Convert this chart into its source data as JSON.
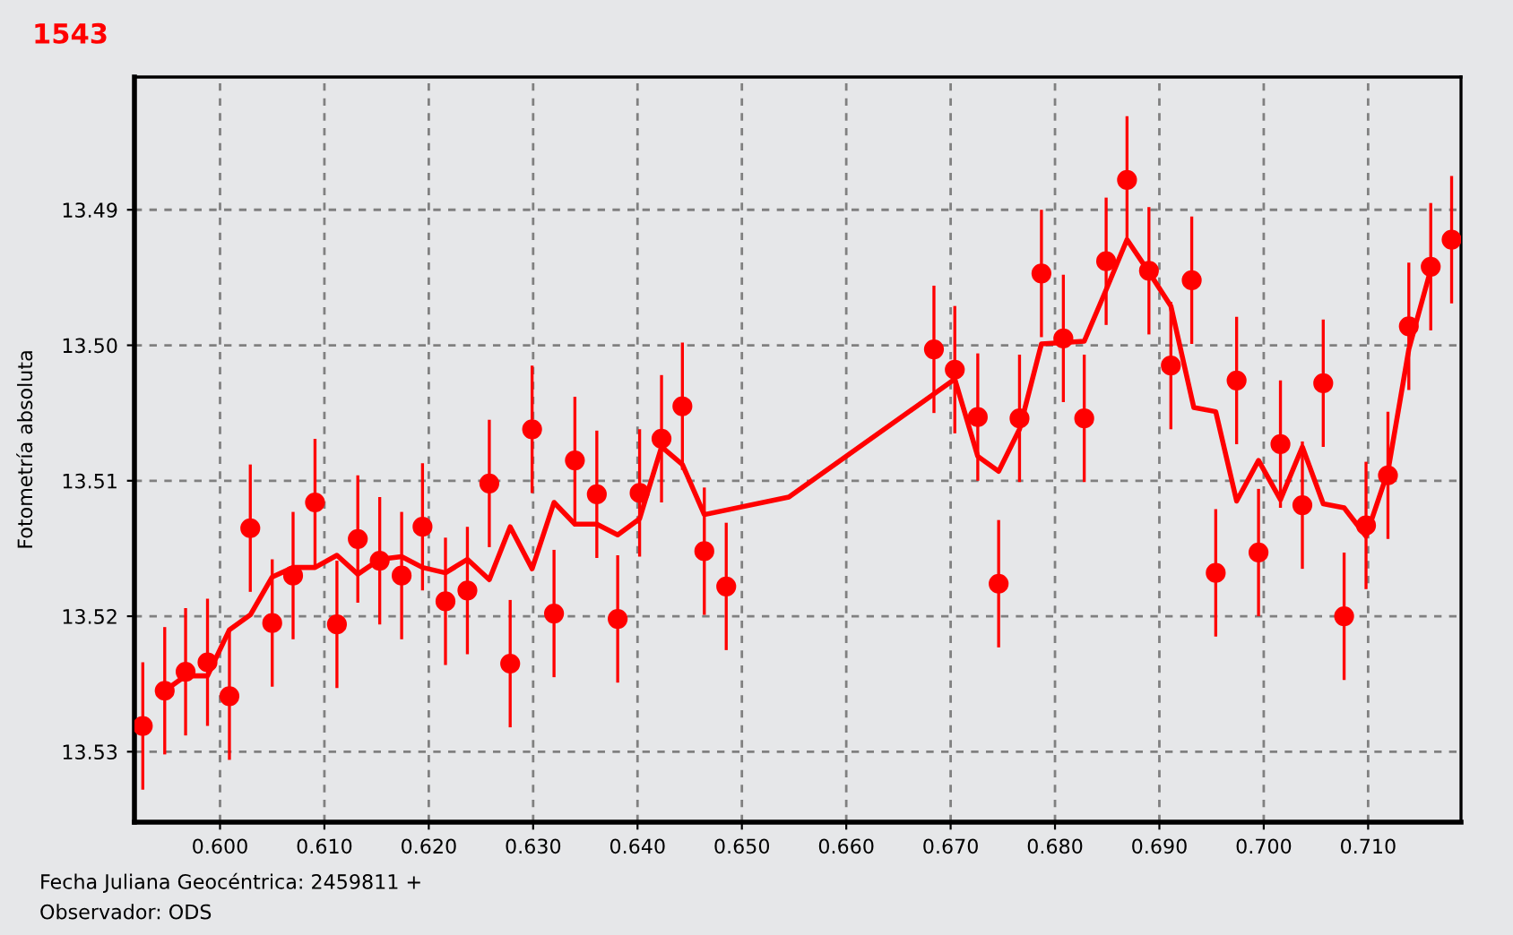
{
  "chart_data": {
    "type": "scatter",
    "title": "1543",
    "xlabel": "Fecha Juliana Geocéntrica: 2459811 +",
    "ylabel": "Fotometría absoluta",
    "annotations": [
      "Observador: ODS"
    ],
    "xlim": [
      0.5918,
      0.7189
    ],
    "ylim": [
      13.5352,
      13.4802
    ],
    "xticks": [
      {
        "value": 0.6,
        "label": "0.600"
      },
      {
        "value": 0.61,
        "label": "0.610"
      },
      {
        "value": 0.62,
        "label": "0.620"
      },
      {
        "value": 0.63,
        "label": "0.630"
      },
      {
        "value": 0.64,
        "label": "0.640"
      },
      {
        "value": 0.65,
        "label": "0.650"
      },
      {
        "value": 0.66,
        "label": "0.660"
      },
      {
        "value": 0.67,
        "label": "0.670"
      },
      {
        "value": 0.68,
        "label": "0.680"
      },
      {
        "value": 0.69,
        "label": "0.690"
      },
      {
        "value": 0.7,
        "label": "0.700"
      },
      {
        "value": 0.71,
        "label": "0.710"
      }
    ],
    "yticks": [
      13.49,
      {
        "value": 13.5,
        "label": "13.50"
      },
      13.51,
      13.52,
      13.53
    ],
    "grid": true,
    "legend": false,
    "series": [
      {
        "marker": "circle",
        "color": "#ff0000",
        "x": [
          0.5926,
          0.5947,
          0.5967,
          0.5988,
          0.6009,
          0.6029,
          0.605,
          0.607,
          0.6091,
          0.6112,
          0.6132,
          0.6153,
          0.6174,
          0.6194,
          0.6216,
          0.6237,
          0.6258,
          0.6278,
          0.6299,
          0.632,
          0.634,
          0.6361,
          0.6381,
          0.6402,
          0.6423,
          0.6443,
          0.6464,
          0.6485,
          0.6684,
          0.6704,
          0.6726,
          0.6746,
          0.6766,
          0.6787,
          0.6808,
          0.6828,
          0.6849,
          0.6869,
          0.689,
          0.6911,
          0.6931,
          0.6954,
          0.6974,
          0.6995,
          0.7016,
          0.7037,
          0.7057,
          0.7077,
          0.7098,
          0.7119,
          0.7139,
          0.716,
          0.718
        ],
        "values": [
          13.5281,
          13.5255,
          13.5241,
          13.5234,
          13.5259,
          13.5135,
          13.5205,
          13.517,
          13.5116,
          13.5206,
          13.5143,
          13.5159,
          13.517,
          13.5134,
          13.5189,
          13.5181,
          13.5102,
          13.5235,
          13.5062,
          13.5198,
          13.5085,
          13.511,
          13.5202,
          13.5109,
          13.5069,
          13.5045,
          13.5152,
          13.5178,
          13.5003,
          13.5018,
          13.5053,
          13.5176,
          13.5054,
          13.4947,
          13.4995,
          13.5054,
          13.4938,
          13.4878,
          13.4945,
          13.5015,
          13.4952,
          13.5168,
          13.5026,
          13.5153,
          13.5073,
          13.5118,
          13.5028,
          13.52,
          13.5133,
          13.5096,
          13.4986,
          13.4942,
          13.4922
        ],
        "errors": [
          0.0047,
          0.0047,
          0.0047,
          0.0047,
          0.0047,
          0.0047,
          0.0047,
          0.0047,
          0.0047,
          0.0047,
          0.0047,
          0.0047,
          0.0047,
          0.0047,
          0.0047,
          0.0047,
          0.0047,
          0.0047,
          0.0047,
          0.0047,
          0.0047,
          0.0047,
          0.0047,
          0.0047,
          0.0047,
          0.0047,
          0.0047,
          0.0047,
          0.0047,
          0.0047,
          0.0047,
          0.0047,
          0.0047,
          0.0047,
          0.0047,
          0.0047,
          0.0047,
          0.0047,
          0.0047,
          0.0047,
          0.0047,
          0.0047,
          0.0047,
          0.0047,
          0.0047,
          0.0047,
          0.0047,
          0.0047,
          0.0047,
          0.0047,
          0.0047,
          0.0047,
          0.0047
        ]
      },
      {
        "type": "line",
        "marker": "none",
        "line_style": "solid",
        "color": "#ff0000",
        "x": [
          0.5947,
          0.5967,
          0.5988,
          0.6009,
          0.6029,
          0.605,
          0.607,
          0.6091,
          0.6112,
          0.6132,
          0.6153,
          0.6174,
          0.6194,
          0.6216,
          0.6237,
          0.6258,
          0.6278,
          0.6299,
          0.632,
          0.634,
          0.6361,
          0.6381,
          0.6402,
          0.6423,
          0.6443,
          0.6464,
          0.6545,
          0.6704,
          0.6726,
          0.6746,
          0.6766,
          0.6787,
          0.6828,
          0.6849,
          0.6869,
          0.689,
          0.6911,
          0.6933,
          0.6954,
          0.6974,
          0.6995,
          0.7016,
          0.7037,
          0.7057,
          0.7077,
          0.7098,
          0.7119,
          0.7139,
          0.716
        ],
        "values": [
          13.5255,
          13.5244,
          13.5244,
          13.521,
          13.5199,
          13.5171,
          13.5164,
          13.5164,
          13.5155,
          13.5169,
          13.5158,
          13.5156,
          13.5164,
          13.5168,
          13.5158,
          13.5173,
          13.5134,
          13.5165,
          13.5116,
          13.5132,
          13.5132,
          13.514,
          13.5128,
          13.5075,
          13.5088,
          13.5125,
          13.5112,
          13.5025,
          13.5082,
          13.5093,
          13.5062,
          13.4999,
          13.4997,
          13.4959,
          13.4922,
          13.4946,
          13.4971,
          13.5046,
          13.5049,
          13.5115,
          13.5085,
          13.5114,
          13.5075,
          13.5117,
          13.512,
          13.5141,
          13.5093,
          13.5003,
          13.4944
        ]
      }
    ]
  }
}
